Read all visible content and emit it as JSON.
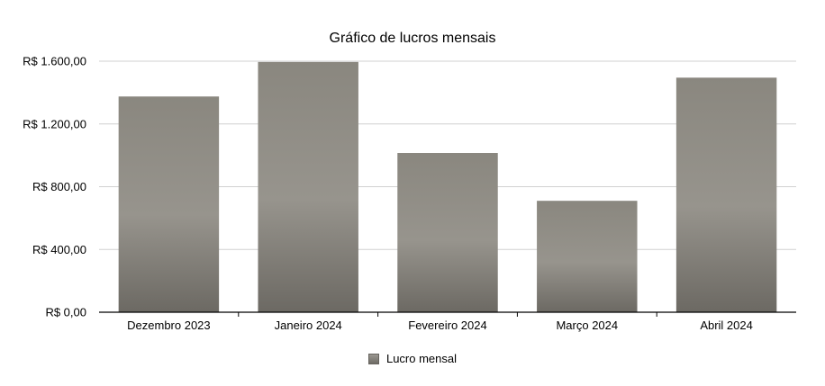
{
  "chart_data": {
    "type": "bar",
    "title": "Gráfico de lucros mensais",
    "categories": [
      "Dezembro 2023",
      "Janeiro 2024",
      "Fevereiro 2024",
      "Março 2024",
      "Abril 2024"
    ],
    "series": [
      {
        "name": "Lucro mensal",
        "values": [
          1375,
          1595,
          1015,
          710,
          1495
        ],
        "color": "#8e8b84"
      }
    ],
    "ylim": [
      0,
      1600
    ],
    "yticks": [
      0,
      400,
      800,
      1200,
      1600
    ],
    "ytick_labels": [
      "R$ 0,00",
      "R$ 400,00",
      "R$ 800,00",
      "R$ 1.200,00",
      "R$ 1.600,00"
    ],
    "grid": true,
    "legend_position": "bottom"
  }
}
